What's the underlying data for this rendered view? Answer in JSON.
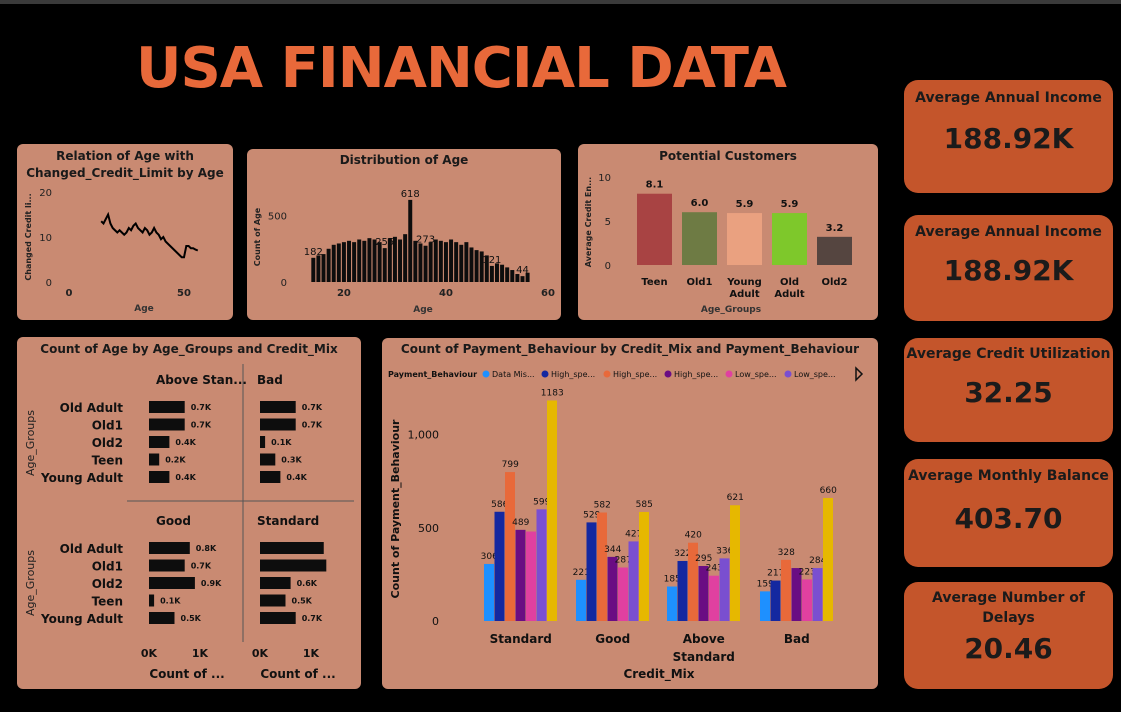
{
  "title": "USA FINANCIAL DATA",
  "colors": {
    "title": "#e8693a",
    "panel": "#c98a72",
    "card": "#c4552b"
  },
  "cards": [
    {
      "label": "Average Annual Income",
      "value": "188.92K"
    },
    {
      "label": "Average Annual Income",
      "value": "188.92K"
    },
    {
      "label": "Average Credit Utilization",
      "value": "32.25"
    },
    {
      "label": "Average Monthly Balance",
      "value": "403.70"
    },
    {
      "label": "Average Number of Delays",
      "value": "20.46"
    }
  ],
  "panels": {
    "age_credit": {
      "title_line1": "Relation of Age with",
      "title_line2": "Changed_Credit_Limit by Age"
    },
    "age_dist": {
      "title": "Distribution of Age"
    },
    "potential": {
      "title": "Potential Customers"
    },
    "age_groups": {
      "title": "Count of Age by Age_Groups and Credit_Mix"
    },
    "payment": {
      "title": "Count of Payment_Behaviour by Credit_Mix and Payment_Behaviour"
    }
  },
  "chart_data": [
    {
      "type": "line",
      "title": "Relation of Age with Changed_Credit_Limit by Age",
      "xlabel": "Age",
      "ylabel": "Changed Credit li...",
      "x_ticks": [
        "0",
        "50"
      ],
      "y_ticks": [
        "0",
        "10",
        "20"
      ],
      "xlim": [
        0,
        60
      ],
      "ylim": [
        0,
        20
      ],
      "x": [
        14,
        15,
        16,
        17,
        18,
        19,
        20,
        21,
        22,
        23,
        24,
        25,
        26,
        27,
        28,
        29,
        30,
        31,
        32,
        33,
        34,
        35,
        36,
        37,
        38,
        39,
        40,
        41,
        42,
        43,
        44,
        45,
        46,
        47,
        48,
        49,
        50,
        51,
        52,
        53,
        54,
        55,
        56
      ],
      "y": [
        13.5,
        13,
        14,
        15,
        13,
        12,
        11.5,
        11,
        11.5,
        11,
        10.5,
        11,
        12,
        11.5,
        12.5,
        13,
        12,
        11.5,
        11,
        12,
        11.5,
        10.5,
        11,
        12,
        11,
        10.5,
        9.5,
        10,
        9,
        8.5,
        8,
        7.5,
        7,
        6.5,
        6,
        5.5,
        5.5,
        8,
        8,
        7.5,
        7.5,
        7.2,
        7
      ]
    },
    {
      "type": "bar",
      "title": "Distribution of Age",
      "xlabel": "Age",
      "ylabel": "Count of Age",
      "x_ticks": [
        "20",
        "40",
        "60"
      ],
      "y_ticks": [
        "0",
        "500"
      ],
      "xlim": [
        11,
        60
      ],
      "ylim": [
        0,
        700
      ],
      "x": [
        14,
        15,
        16,
        17,
        18,
        19,
        20,
        21,
        22,
        23,
        24,
        25,
        26,
        27,
        28,
        29,
        30,
        31,
        32,
        33,
        34,
        35,
        36,
        37,
        38,
        39,
        40,
        41,
        42,
        43,
        44,
        45,
        46,
        47,
        48,
        49,
        50,
        51,
        52,
        53,
        54,
        55,
        56
      ],
      "values": [
        182,
        200,
        210,
        250,
        280,
        290,
        300,
        310,
        300,
        320,
        310,
        330,
        320,
        300,
        255,
        330,
        340,
        320,
        360,
        618,
        310,
        290,
        273,
        300,
        320,
        310,
        300,
        320,
        300,
        280,
        300,
        260,
        240,
        230,
        200,
        121,
        140,
        130,
        110,
        90,
        60,
        44,
        70
      ],
      "labels": {
        "14": "182",
        "28": "255",
        "33": "618",
        "36": "273",
        "49": "121",
        "55": "44"
      }
    },
    {
      "type": "bar",
      "title": "Potential Customers",
      "xlabel": "Age_Groups",
      "ylabel": "Average Credit En...",
      "y_ticks": [
        "0",
        "5",
        "10"
      ],
      "ylim": [
        0,
        10
      ],
      "categories": [
        "Teen",
        "Old1",
        "Young Adult",
        "Old Adult",
        "Old2"
      ],
      "category_lines": [
        [
          "Teen"
        ],
        [
          "Old1"
        ],
        [
          "Young",
          "Adult"
        ],
        [
          "Old",
          "Adult"
        ],
        [
          "Old2"
        ]
      ],
      "values": [
        8.1,
        6.0,
        5.9,
        5.9,
        3.2
      ],
      "labels": [
        "8.1",
        "6.0",
        "5.9",
        "5.9",
        "3.2"
      ],
      "colors": [
        "#a84343",
        "#6e7b44",
        "#eaa180",
        "#7ec82b",
        "#554540"
      ]
    },
    {
      "type": "bar",
      "title": "Count of Age by Age_Groups and Credit_Mix",
      "ylabel": "Age_Groups",
      "xlabel": "Count of ...",
      "x_ticks": [
        "0K",
        "1K"
      ],
      "xlim": [
        0,
        1.4
      ],
      "groups": [
        "Old Adult",
        "Old1",
        "Old2",
        "Teen",
        "Young Adult"
      ],
      "facets": [
        {
          "name": "Above Stan...",
          "values": [
            0.7,
            0.7,
            0.4,
            0.2,
            0.4
          ],
          "labels": [
            "0.7K",
            "0.7K",
            "0.4K",
            "0.2K",
            "0.4K"
          ]
        },
        {
          "name": "Bad",
          "values": [
            0.7,
            0.7,
            0.1,
            0.3,
            0.4
          ],
          "labels": [
            "0.7K",
            "0.7K",
            "0.1K",
            "0.3K",
            "0.4K"
          ]
        },
        {
          "name": "Good",
          "values": [
            0.8,
            0.7,
            0.9,
            0.1,
            0.5
          ],
          "labels": [
            "0.8K",
            "0.7K",
            "0.9K",
            "0.1K",
            "0.5K"
          ]
        },
        {
          "name": "Standard",
          "values": [
            1.25,
            1.3,
            0.6,
            0.5,
            0.7
          ],
          "labels": [
            "",
            "",
            "0.6K",
            "0.5K",
            "0.7K"
          ]
        }
      ]
    },
    {
      "type": "bar",
      "title": "Count of Payment_Behaviour by Credit_Mix and Payment_Behaviour",
      "xlabel": "Credit_Mix",
      "ylabel": "Count of Payment_Behaviour",
      "y_ticks": [
        "0",
        "500",
        "1,000"
      ],
      "ylim": [
        0,
        1250
      ],
      "legend_title": "Payment_Behaviour",
      "legend_position": "top",
      "categories": [
        "Standard",
        "Good",
        "Above Standard",
        "Bad"
      ],
      "category_lines": [
        [
          "Standard"
        ],
        [
          "Good"
        ],
        [
          "Above",
          "Standard"
        ],
        [
          "Bad"
        ]
      ],
      "series": [
        {
          "name": "Data Mis...",
          "color": "#1e90ff",
          "values": [
            306,
            221,
            185,
            159
          ]
        },
        {
          "name": "High_spe...",
          "color": "#1428a0",
          "values": [
            586,
            529,
            322,
            217
          ]
        },
        {
          "name": "High_spe...",
          "color": "#e8693a",
          "values": [
            799,
            582,
            420,
            328
          ]
        },
        {
          "name": "High_spe...",
          "color": "#6a0d83",
          "values": [
            489,
            344,
            295,
            284
          ]
        },
        {
          "name": "Low_spe...",
          "color": "#e040a0",
          "values": [
            480,
            287,
            243,
            223
          ]
        },
        {
          "name": "Low_spe...",
          "color": "#7a4fd0",
          "values": [
            599,
            427,
            336,
            284
          ]
        },
        {
          "name": "",
          "color": "#e6b800",
          "values": [
            1183,
            585,
            621,
            660
          ]
        }
      ],
      "shown_labels": [
        [
          "306",
          "586",
          "799",
          "489",
          "",
          "599",
          "1183"
        ],
        [
          "221",
          "529",
          "582",
          "344",
          "287",
          "427",
          "585"
        ],
        [
          "185",
          "322",
          "420",
          "295",
          "243",
          "336",
          "621"
        ],
        [
          "159",
          "217",
          "328",
          "",
          "223",
          "284",
          "660"
        ]
      ]
    }
  ]
}
